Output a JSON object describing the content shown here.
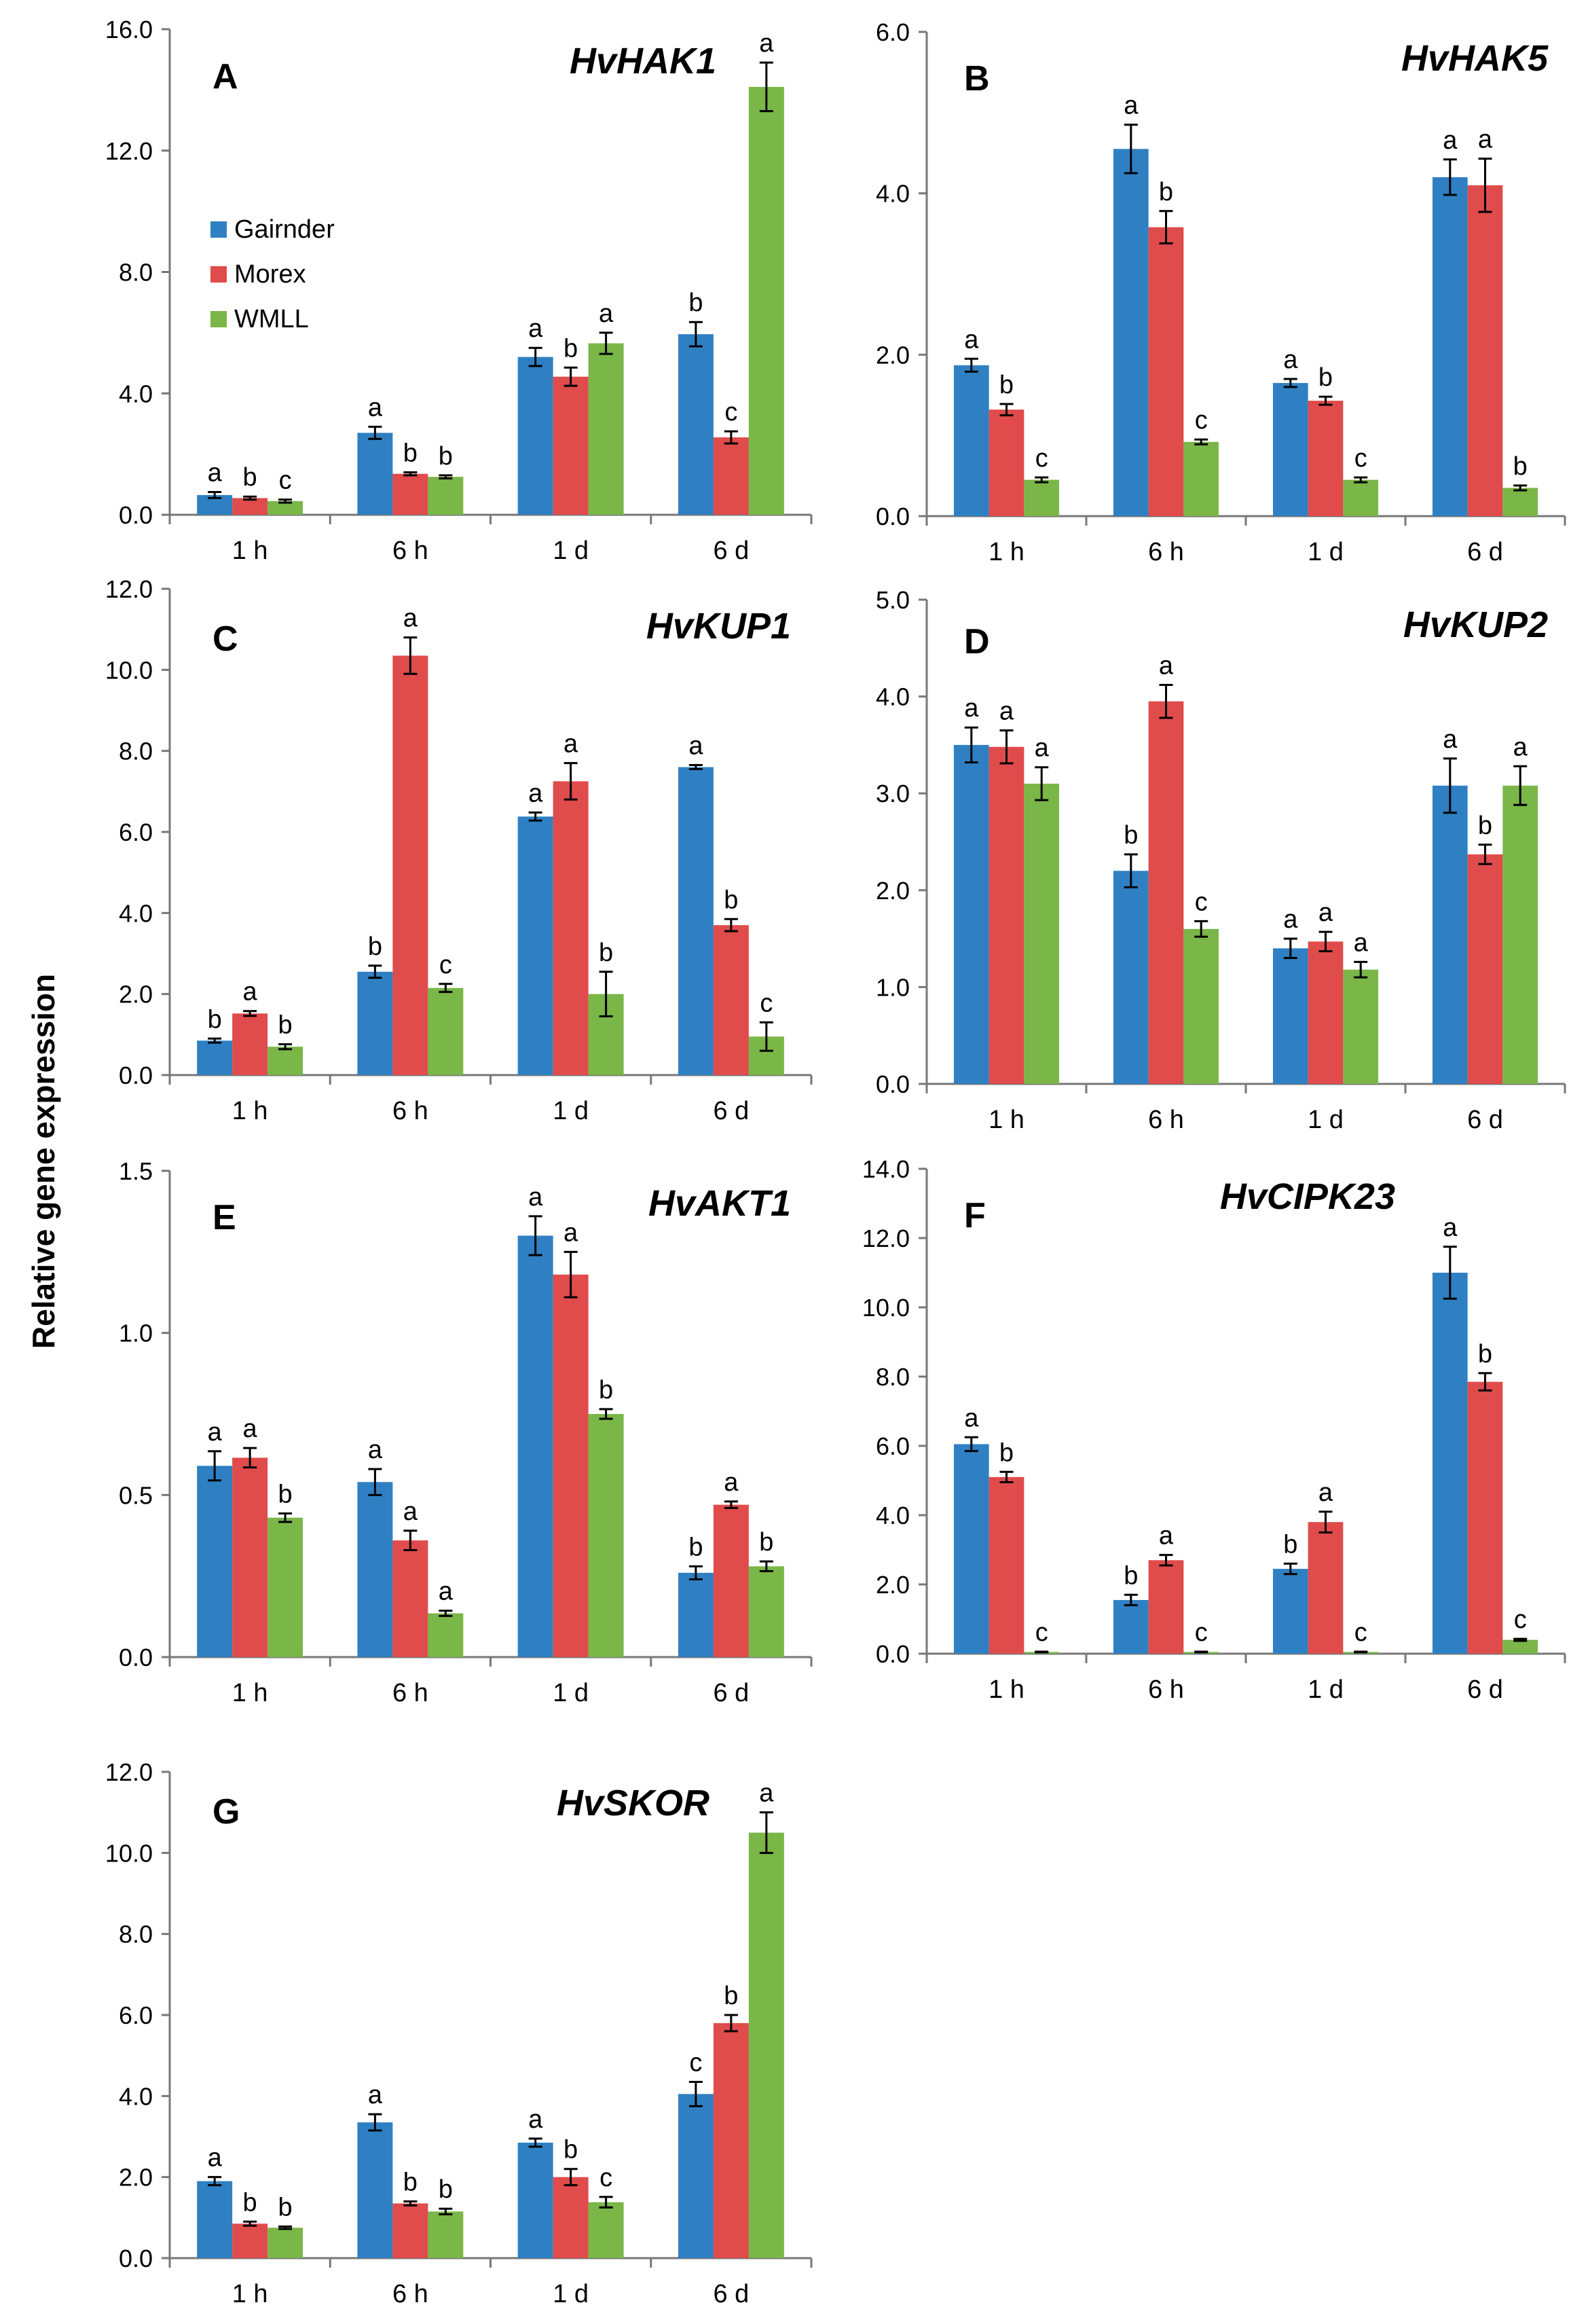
{
  "figure": {
    "ylabel": "Relative gene expression",
    "legend": [
      "Gairnder",
      "Morex",
      "WMLL"
    ],
    "colors": [
      "#2f80c3",
      "#e04b4b",
      "#7ab648"
    ]
  },
  "chart_data": [
    {
      "type": "bar",
      "panel": "A",
      "title": "HvHAK1",
      "categories": [
        "1 h",
        "6 h",
        "1 d",
        "6 d"
      ],
      "ylim": [
        0,
        16
      ],
      "yticks": [
        "0.0",
        "4.0",
        "8.0",
        "12.0",
        "16.0"
      ],
      "ytick_values": [
        0,
        4,
        8,
        12,
        16
      ],
      "series": [
        {
          "name": "Gairnder",
          "values": [
            0.65,
            2.7,
            5.2,
            5.95
          ],
          "errors": [
            0.1,
            0.2,
            0.3,
            0.4
          ],
          "letters": [
            "a",
            "a",
            "a",
            "b"
          ]
        },
        {
          "name": "Morex",
          "values": [
            0.55,
            1.35,
            4.55,
            2.55
          ],
          "errors": [
            0.05,
            0.05,
            0.3,
            0.2
          ],
          "letters": [
            "b",
            "b",
            "b",
            "c"
          ]
        },
        {
          "name": "WMLL",
          "values": [
            0.45,
            1.25,
            5.65,
            14.1
          ],
          "errors": [
            0.05,
            0.05,
            0.35,
            0.8
          ],
          "letters": [
            "c",
            "b",
            "a",
            "a"
          ]
        }
      ]
    },
    {
      "type": "bar",
      "panel": "B",
      "title": "HvHAK5",
      "categories": [
        "1 h",
        "6 h",
        "1 d",
        "6 d"
      ],
      "ylim": [
        0,
        6
      ],
      "yticks": [
        "0.0",
        "2.0",
        "4.0",
        "6.0"
      ],
      "ytick_values": [
        0,
        2,
        4,
        6
      ],
      "series": [
        {
          "name": "Gairnder",
          "values": [
            1.87,
            4.55,
            1.65,
            4.2
          ],
          "errors": [
            0.08,
            0.3,
            0.05,
            0.22
          ],
          "letters": [
            "a",
            "a",
            "a",
            "a"
          ]
        },
        {
          "name": "Morex",
          "values": [
            1.32,
            3.58,
            1.43,
            4.1
          ],
          "errors": [
            0.07,
            0.2,
            0.05,
            0.33
          ],
          "letters": [
            "b",
            "b",
            "b",
            "a"
          ]
        },
        {
          "name": "WMLL",
          "values": [
            0.45,
            0.92,
            0.45,
            0.35
          ],
          "errors": [
            0.03,
            0.03,
            0.03,
            0.03
          ],
          "letters": [
            "c",
            "c",
            "c",
            "b"
          ]
        }
      ]
    },
    {
      "type": "bar",
      "panel": "C",
      "title": "HvKUP1",
      "categories": [
        "1 h",
        "6 h",
        "1 d",
        "6 d"
      ],
      "ylim": [
        0,
        12
      ],
      "yticks": [
        "0.0",
        "2.0",
        "4.0",
        "6.0",
        "8.0",
        "10.0",
        "12.0"
      ],
      "ytick_values": [
        0,
        2,
        4,
        6,
        8,
        10,
        12
      ],
      "series": [
        {
          "name": "Gairnder",
          "values": [
            0.85,
            2.55,
            6.38,
            7.6
          ],
          "errors": [
            0.05,
            0.15,
            0.1,
            0.05
          ],
          "letters": [
            "b",
            "b",
            "a",
            "a"
          ]
        },
        {
          "name": "Morex",
          "values": [
            1.52,
            10.35,
            7.25,
            3.7
          ],
          "errors": [
            0.06,
            0.45,
            0.45,
            0.15
          ],
          "letters": [
            "a",
            "a",
            "a",
            "b"
          ]
        },
        {
          "name": "WMLL",
          "values": [
            0.7,
            2.15,
            2.0,
            0.95
          ],
          "errors": [
            0.06,
            0.1,
            0.55,
            0.35
          ],
          "letters": [
            "b",
            "c",
            "b",
            "c"
          ]
        }
      ]
    },
    {
      "type": "bar",
      "panel": "D",
      "title": "HvKUP2",
      "categories": [
        "1 h",
        "6 h",
        "1 d",
        "6 d"
      ],
      "ylim": [
        0,
        5
      ],
      "yticks": [
        "0.0",
        "1.0",
        "2.0",
        "3.0",
        "4.0",
        "5.0"
      ],
      "ytick_values": [
        0,
        1,
        2,
        3,
        4,
        5
      ],
      "series": [
        {
          "name": "Gairnder",
          "values": [
            3.5,
            2.2,
            1.4,
            3.08
          ],
          "errors": [
            0.18,
            0.17,
            0.1,
            0.28
          ],
          "letters": [
            "a",
            "b",
            "a",
            "a"
          ]
        },
        {
          "name": "Morex",
          "values": [
            3.48,
            3.95,
            1.47,
            2.37
          ],
          "errors": [
            0.17,
            0.17,
            0.1,
            0.1
          ],
          "letters": [
            "a",
            "a",
            "a",
            "b"
          ]
        },
        {
          "name": "WMLL",
          "values": [
            3.1,
            1.6,
            1.18,
            3.08
          ],
          "errors": [
            0.17,
            0.08,
            0.08,
            0.2
          ],
          "letters": [
            "a",
            "c",
            "a",
            "a"
          ]
        }
      ]
    },
    {
      "type": "bar",
      "panel": "E",
      "title": "HvAKT1",
      "categories": [
        "1 h",
        "6 h",
        "1 d",
        "6 d"
      ],
      "ylim": [
        0,
        1.5
      ],
      "yticks": [
        "0.0",
        "0.5",
        "1.0",
        "1.5"
      ],
      "ytick_values": [
        0,
        0.5,
        1,
        1.5
      ],
      "series": [
        {
          "name": "Gairnder",
          "values": [
            0.59,
            0.54,
            1.3,
            0.26
          ],
          "errors": [
            0.045,
            0.04,
            0.06,
            0.02
          ],
          "letters": [
            "a",
            "a",
            "a",
            "b"
          ]
        },
        {
          "name": "Morex",
          "values": [
            0.615,
            0.36,
            1.18,
            0.47
          ],
          "errors": [
            0.03,
            0.03,
            0.07,
            0.01
          ],
          "letters": [
            "a",
            "a",
            "a",
            "a"
          ]
        },
        {
          "name": "WMLL",
          "values": [
            0.43,
            0.135,
            0.75,
            0.28
          ],
          "errors": [
            0.013,
            0.008,
            0.015,
            0.015
          ],
          "letters": [
            "b",
            "a",
            "b",
            "b"
          ]
        }
      ]
    },
    {
      "type": "bar",
      "panel": "F",
      "title": "HvCIPK23",
      "categories": [
        "1 h",
        "6 h",
        "1 d",
        "6 d"
      ],
      "ylim": [
        0,
        14
      ],
      "yticks": [
        "0.0",
        "2.0",
        "4.0",
        "6.0",
        "8.0",
        "10.0",
        "12.0",
        "14.0"
      ],
      "ytick_values": [
        0,
        2,
        4,
        6,
        8,
        10,
        12,
        14
      ],
      "series": [
        {
          "name": "Gairnder",
          "values": [
            6.05,
            1.55,
            2.45,
            11.0
          ],
          "errors": [
            0.2,
            0.15,
            0.15,
            0.75
          ],
          "letters": [
            "a",
            "b",
            "b",
            "a"
          ]
        },
        {
          "name": "Morex",
          "values": [
            5.1,
            2.7,
            3.8,
            7.85
          ],
          "errors": [
            0.15,
            0.15,
            0.3,
            0.25
          ],
          "letters": [
            "b",
            "a",
            "a",
            "b"
          ]
        },
        {
          "name": "WMLL",
          "values": [
            0.05,
            0.05,
            0.05,
            0.4
          ],
          "errors": [
            0.01,
            0.01,
            0.01,
            0.03
          ],
          "letters": [
            "c",
            "c",
            "c",
            "c"
          ]
        }
      ]
    },
    {
      "type": "bar",
      "panel": "G",
      "title": "HvSKOR",
      "categories": [
        "1 h",
        "6 h",
        "1 d",
        "6 d"
      ],
      "ylim": [
        0,
        12
      ],
      "yticks": [
        "0.0",
        "2.0",
        "4.0",
        "6.0",
        "8.0",
        "10.0",
        "12.0"
      ],
      "ytick_values": [
        0,
        2,
        4,
        6,
        8,
        10,
        12
      ],
      "series": [
        {
          "name": "Gairnder",
          "values": [
            1.9,
            3.35,
            2.85,
            4.05
          ],
          "errors": [
            0.1,
            0.2,
            0.1,
            0.3
          ],
          "letters": [
            "a",
            "a",
            "a",
            "c"
          ]
        },
        {
          "name": "Morex",
          "values": [
            0.85,
            1.35,
            2.0,
            5.8
          ],
          "errors": [
            0.05,
            0.05,
            0.2,
            0.2
          ],
          "letters": [
            "b",
            "b",
            "b",
            "b"
          ]
        },
        {
          "name": "WMLL",
          "values": [
            0.75,
            1.15,
            1.38,
            10.5
          ],
          "errors": [
            0.03,
            0.07,
            0.13,
            0.5
          ],
          "letters": [
            "b",
            "b",
            "c",
            "a"
          ]
        }
      ]
    }
  ]
}
